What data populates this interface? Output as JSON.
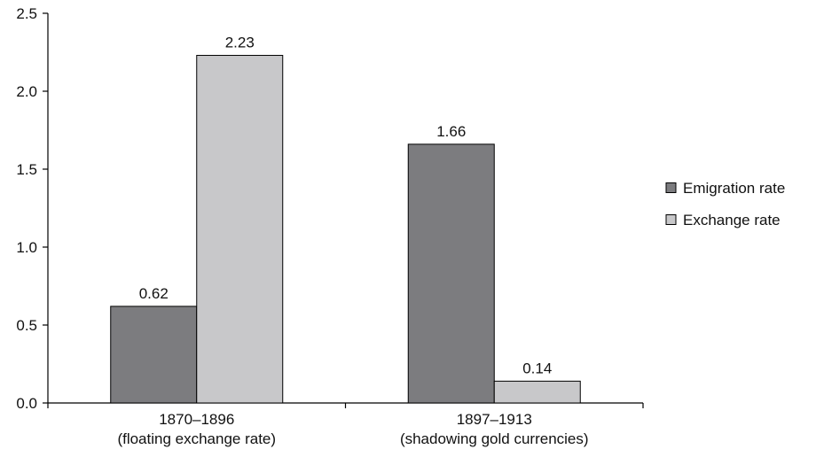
{
  "chart_data": {
    "type": "bar",
    "categories": [
      [
        "1870–1896",
        "(floating exchange rate)"
      ],
      [
        "1897–1913",
        "(shadowing gold currencies)"
      ]
    ],
    "series": [
      {
        "name": "Emigration rate",
        "values": [
          0.62,
          1.66
        ],
        "color": "#7c7c7f",
        "labels": [
          "0.62",
          "1.66"
        ]
      },
      {
        "name": "Exchange rate",
        "values": [
          2.23,
          0.14
        ],
        "color": "#c8c8ca",
        "labels": [
          "2.23",
          "0.14"
        ]
      }
    ],
    "ylim": [
      0,
      2.5
    ],
    "yticks": [
      0,
      0.5,
      1.0,
      1.5,
      2.0,
      2.5
    ],
    "ytick_labels": [
      "0.0",
      "0.5",
      "1.0",
      "1.5",
      "2.0",
      "2.5"
    ],
    "grid": false,
    "legend_position": "right",
    "title": "",
    "xlabel": "",
    "ylabel": ""
  }
}
